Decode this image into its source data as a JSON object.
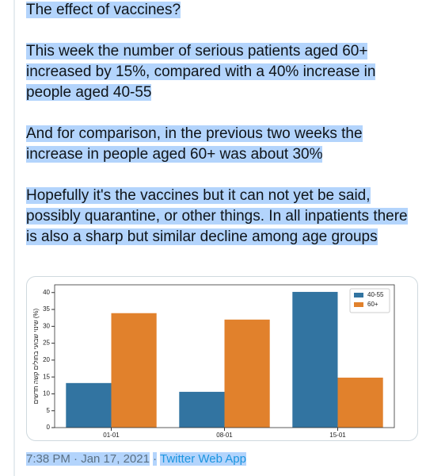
{
  "tweet": {
    "paragraphs": [
      "The effect of vaccines?",
      " This week the number of serious patients aged 60+ increased by 15%, compared with a 40% increase in people aged 40-55",
      " And for comparison, in the previous two weeks the increase in people aged 60+ was about 30%",
      " Hopefully it's the vaccines but it can not yet be said, possibly quarantine, or other things. In all inpatients there is also a sharp but similar decline among age groups"
    ],
    "time": "7:38 PM · Jan 17, 2021",
    "separator": "·",
    "source": "Twitter Web App"
  },
  "chart_data": {
    "type": "bar",
    "y_label": "שינוי שבועי בחולים קשה חדשים (%)",
    "categories": [
      "01-01",
      "08-01",
      "15-01"
    ],
    "series": [
      {
        "name": "40-55",
        "color": "#3274a1",
        "values": [
          13.2,
          10.6,
          40.2
        ]
      },
      {
        "name": "60+",
        "color": "#e1812c",
        "values": [
          33.9,
          32.0,
          14.8
        ]
      }
    ],
    "ylim": [
      0,
      42.3
    ],
    "yticks": [
      0,
      5,
      10,
      15,
      20,
      25,
      30,
      35,
      40
    ],
    "legend": "upper right"
  }
}
